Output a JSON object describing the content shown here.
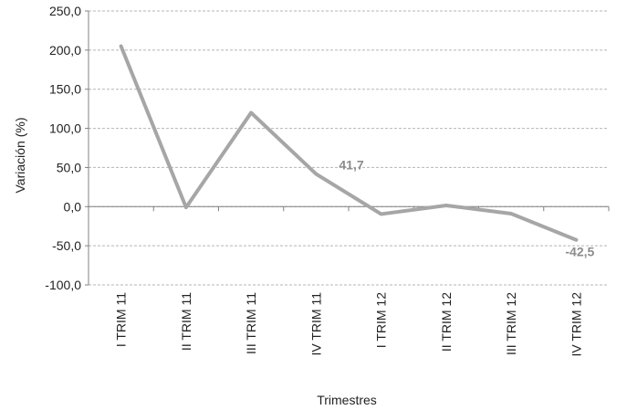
{
  "chart_data": {
    "type": "line",
    "title": "",
    "xlabel": "Trimestres",
    "ylabel": "Variación (%)",
    "ylim": [
      -100,
      250
    ],
    "yticks": [
      250,
      200,
      150,
      100,
      50,
      0,
      -50,
      -100
    ],
    "ytick_labels": [
      "250,0",
      "200,0",
      "150,0",
      "100,0",
      "50,0",
      "0,0",
      "-50,0",
      "-100,0"
    ],
    "grid": true,
    "legend": "none",
    "categories": [
      "I TRIM 11",
      "II TRIM 11",
      "III TRIM 11",
      "IV TRIM 11",
      "I TRIM 12",
      "II TRIM 12",
      "III TRIM 12",
      "IV TRIM 12"
    ],
    "series": [
      {
        "values": [
          205,
          -1,
          120,
          41.7,
          -9.5,
          1.5,
          -9,
          -42.5
        ],
        "color": "#a6a6a6"
      }
    ],
    "annotations": [
      {
        "index": 3,
        "text": "41,7"
      },
      {
        "index": 7,
        "text": "-42,5"
      }
    ]
  }
}
